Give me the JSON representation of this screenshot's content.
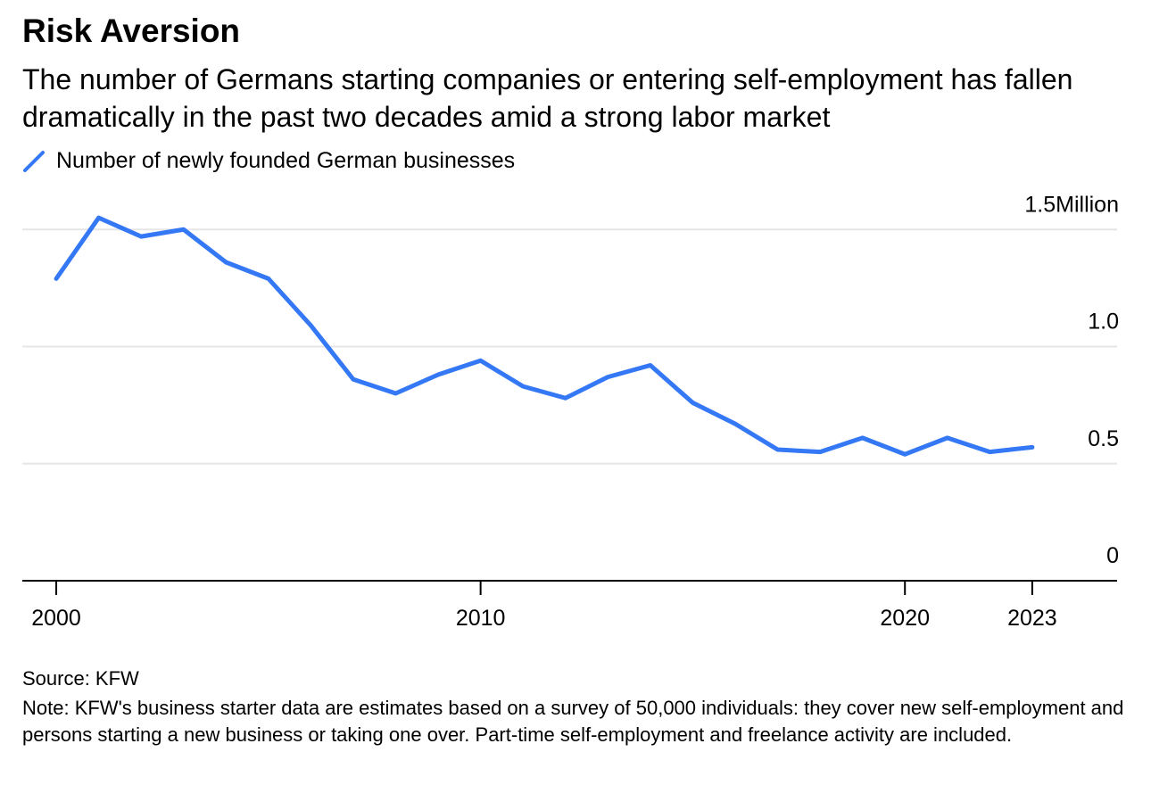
{
  "chart_data": {
    "type": "line",
    "title": "Risk Aversion",
    "subtitle": "The number of Germans starting companies or entering self-employment has fallen dramatically in the past two decades amid a strong labor market",
    "x": [
      2000,
      2001,
      2002,
      2003,
      2004,
      2005,
      2006,
      2007,
      2008,
      2009,
      2010,
      2011,
      2012,
      2013,
      2014,
      2015,
      2016,
      2017,
      2018,
      2019,
      2020,
      2021,
      2022,
      2023
    ],
    "series": [
      {
        "name": "Number of newly founded German businesses",
        "color": "#3478f6",
        "values": [
          1.29,
          1.55,
          1.47,
          1.5,
          1.36,
          1.29,
          1.09,
          0.86,
          0.8,
          0.88,
          0.94,
          0.83,
          0.78,
          0.87,
          0.92,
          0.76,
          0.67,
          0.56,
          0.55,
          0.61,
          0.54,
          0.61,
          0.55,
          0.57
        ]
      }
    ],
    "xlim": [
      1999.2,
      2025
    ],
    "xticks": [
      2000,
      2010,
      2020,
      2023
    ],
    "ylim": [
      0,
      1.6
    ],
    "yticks": [
      0,
      0.5,
      {
        "value": 1,
        "label": "1.0"
      },
      {
        "value": 1.5,
        "label": "1.5Million"
      }
    ],
    "grid": true,
    "source": "Source: KFW",
    "note": "Note: KFW's business starter data are estimates based on a survey of 50,000 individuals: they cover new self-employment and persons starting a new business or taking one over. Part-time self-employment and freelance activity are included."
  }
}
